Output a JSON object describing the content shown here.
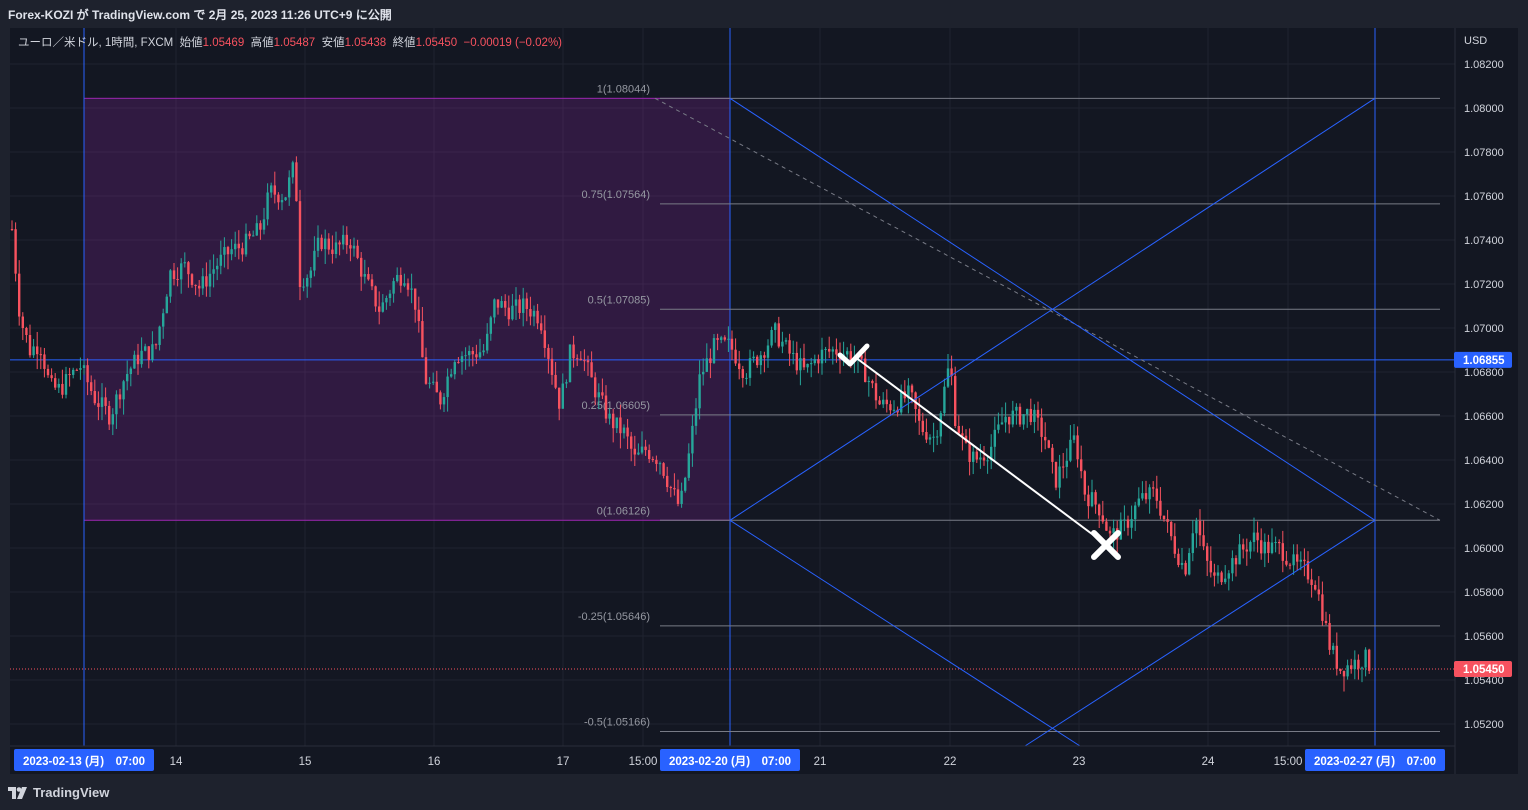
{
  "header": {
    "publish_line": "Forex-KOZI が TradingView.com で 2月 25, 2023 11:26 UTC+9 に公開"
  },
  "legend": {
    "symbol": "ユーロ／米ドル, 1時間, FXCM",
    "open_label": "始値",
    "open_value": "1.05469",
    "high_label": "高値",
    "high_value": "1.05487",
    "low_label": "安値",
    "low_value": "1.05438",
    "close_label": "終値",
    "close_value": "1.05450",
    "change": "−0.00019 (−0.02%)"
  },
  "price_axis": {
    "currency": "USD",
    "ticks": [
      "1.08200",
      "1.08000",
      "1.07800",
      "1.07600",
      "1.07400",
      "1.07200",
      "1.07000",
      "1.06800",
      "1.06600",
      "1.06400",
      "1.06200",
      "1.06000",
      "1.05800",
      "1.05600",
      "1.05400",
      "1.05200"
    ],
    "horizontal_line_label": "1.06855",
    "last_price_label": "1.05450"
  },
  "time_axis": {
    "ticks": [
      "14",
      "15",
      "16",
      "17",
      "15:00",
      "21",
      "22",
      "23",
      "24",
      "15:00"
    ],
    "badges": [
      "2023-02-13 (月)　07:00",
      "2023-02-20 (月)　07:00",
      "2023-02-27 (月)　07:00"
    ]
  },
  "fib_levels": [
    {
      "label": "1(1.08044)",
      "price": 1.08044
    },
    {
      "label": "0.75(1.07564)",
      "price": 1.07564
    },
    {
      "label": "0.5(1.07085)",
      "price": 1.07085
    },
    {
      "label": "0.25(1.06605)",
      "price": 1.06605
    },
    {
      "label": "0(1.06126)",
      "price": 1.06126
    },
    {
      "label": "-0.25(1.05646)",
      "price": 1.05646
    },
    {
      "label": "-0.5(1.05166)",
      "price": 1.05166
    }
  ],
  "horizontal_line_price": 1.06855,
  "last_price": 1.0545,
  "annotations": {
    "check_mark": "checkmark-icon",
    "cross_mark": "cross-icon"
  },
  "colors": {
    "up": "#26a69a",
    "down": "#f7525f",
    "blue": "#2962ff",
    "purple_zone": "#9c27b0"
  },
  "footer": {
    "brand": "TradingView"
  }
}
